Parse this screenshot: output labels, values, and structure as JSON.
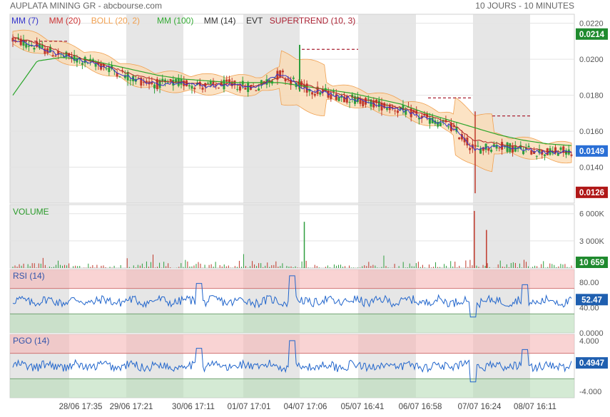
{
  "header": {
    "title": "AUPLATA MINING GR - abcbourse.com",
    "period": "10 JOURS - 10 MINUTES"
  },
  "legend": [
    {
      "label": "MM (7)",
      "color": "#3333cc"
    },
    {
      "label": "MM (20)",
      "color": "#cc3333"
    },
    {
      "label": "BOLL (20, 2)",
      "color": "#f0a050"
    },
    {
      "label": "MM (100)",
      "color": "#33aa33"
    },
    {
      "label": "MM (14)",
      "color": "#333333"
    },
    {
      "label": "EVT",
      "color": "#333333"
    },
    {
      "label": "SUPERTREND (10, 3)",
      "color": "#aa2233"
    }
  ],
  "colors": {
    "up": "#2e9e3e",
    "down": "#c0392b",
    "mm7": "#3333cc",
    "mm20": "#b22222",
    "mm100": "#2aa52a",
    "boll_fill": "#fbd9b0",
    "boll_line": "#f0a050",
    "supertrend": "#aa2233",
    "shade": "#e6e6e6",
    "rsi_line": "#2266cc",
    "badge_last": "#2a6fd6",
    "badge_high": "#1f8a2e",
    "badge_low": "#b01818",
    "badge_osc": "#1f5fb0"
  },
  "chart_data": [
    {
      "type": "candlestick",
      "panel": "price",
      "ylim": [
        0.012,
        0.0225
      ],
      "y_ticks": [
        "0.0220",
        "0.0200",
        "0.0180",
        "0.0160",
        "0.0140"
      ],
      "y_tick_values": [
        0.022,
        0.02,
        0.018,
        0.016,
        0.014
      ],
      "x_labels": [
        "28/06 17:35",
        "29/06 17:21",
        "30/06 17:11",
        "01/07 17:01",
        "04/07 17:06",
        "05/07 16:41",
        "06/07 16:58",
        "07/07 16:24",
        "08/07 16:11"
      ],
      "badges": {
        "high": "0.0214",
        "last": "0.0149",
        "low": "0.0126"
      },
      "series": [
        {
          "name": "MM (7)",
          "values": [
            0.0211,
            0.0207,
            0.0202,
            0.0199,
            0.0195,
            0.0189,
            0.0186,
            0.0187,
            0.0185,
            0.0186,
            0.0184,
            0.0192,
            0.0184,
            0.0181,
            0.0178,
            0.0175,
            0.0172,
            0.0167,
            0.0163,
            0.015,
            0.0152,
            0.015,
            0.0148,
            0.0149
          ]
        },
        {
          "name": "MM (20)",
          "values": [
            0.0212,
            0.0209,
            0.0204,
            0.02,
            0.0196,
            0.0191,
            0.0188,
            0.0187,
            0.0186,
            0.0186,
            0.0185,
            0.019,
            0.0186,
            0.0182,
            0.0179,
            0.0176,
            0.0173,
            0.0169,
            0.0165,
            0.0155,
            0.0153,
            0.0151,
            0.0149,
            0.0148
          ]
        },
        {
          "name": "MM (100)",
          "values": [
            0.018,
            0.0199,
            0.0201,
            0.02,
            0.0197,
            0.0194,
            0.0191,
            0.0189,
            0.0188,
            0.0187,
            0.0187,
            0.0187,
            0.0185,
            0.0183,
            0.0181,
            0.0178,
            0.0175,
            0.017,
            0.0166,
            0.0162,
            0.0158,
            0.0155,
            0.0153,
            0.0152
          ]
        }
      ]
    },
    {
      "type": "bar",
      "panel": "volume",
      "title": "VOLUME",
      "ylim": [
        0,
        7000
      ],
      "y_ticks": [
        "6 000K",
        "3 000K"
      ],
      "y_tick_values": [
        6000,
        3000
      ],
      "badge": "10 659",
      "spikes": [
        {
          "x_index": 12,
          "value": 5100
        },
        {
          "x_index": 19,
          "value": 6300
        },
        {
          "x_index": 19.5,
          "value": 4200
        }
      ]
    },
    {
      "type": "line",
      "panel": "rsi",
      "title": "RSI (14)",
      "ylim": [
        0,
        100
      ],
      "y_ticks": [
        "80.00",
        "40.00",
        "0.0000"
      ],
      "y_tick_values": [
        80,
        40,
        0
      ],
      "zones": {
        "upper": 70,
        "lower": 30
      },
      "badge": "52.47"
    },
    {
      "type": "line",
      "panel": "pgo",
      "title": "PGO (14)",
      "ylim": [
        -5,
        5
      ],
      "y_ticks": [
        "4.000",
        "-4.000"
      ],
      "y_tick_values": [
        4,
        -4
      ],
      "zones": {
        "upper": 2,
        "lower": -2
      },
      "badge": "0.4947"
    }
  ]
}
